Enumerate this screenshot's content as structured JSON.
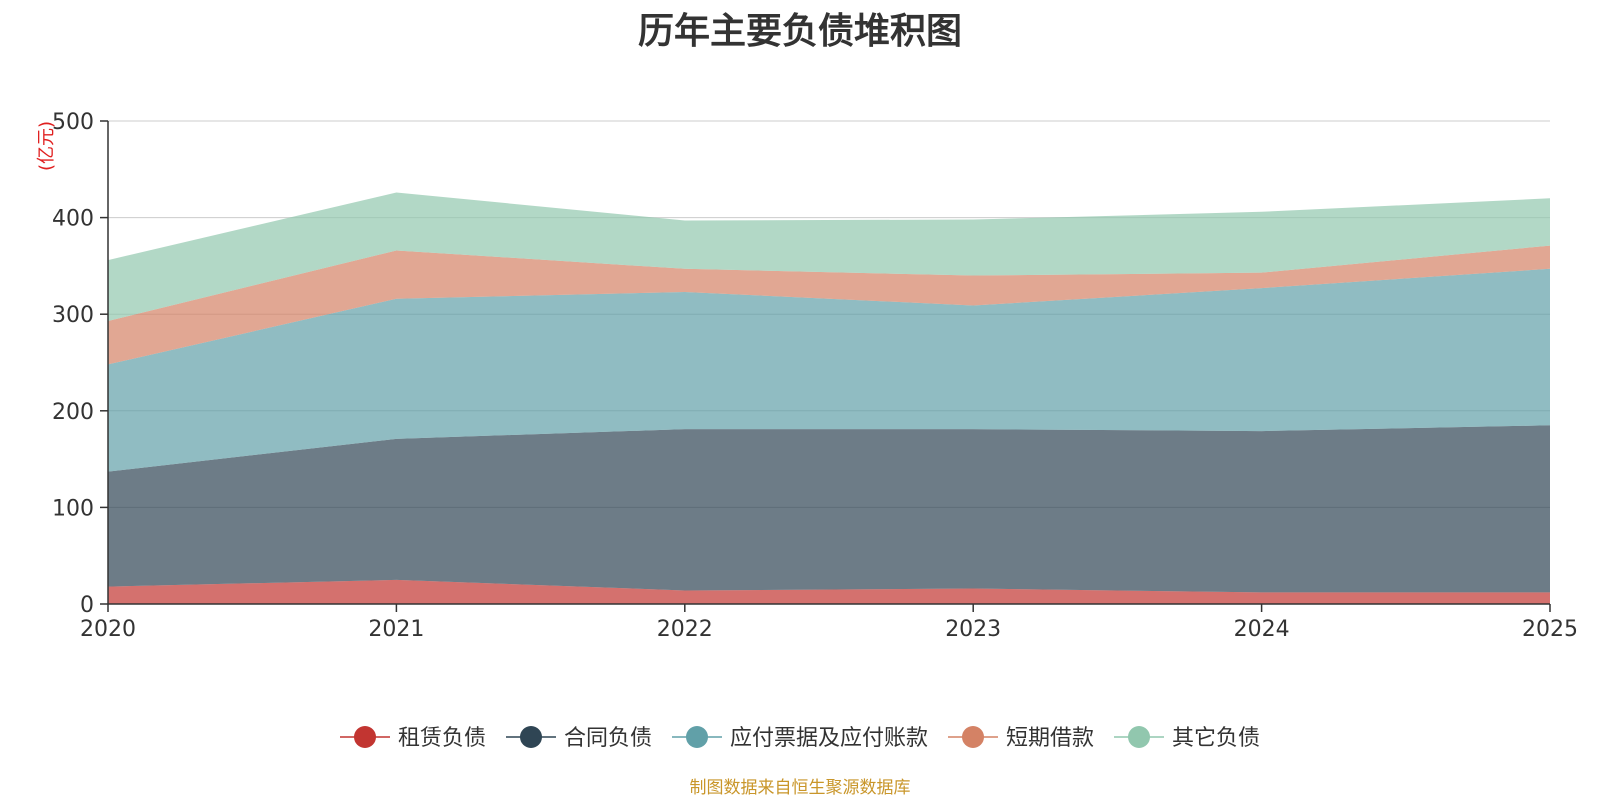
{
  "chart_data": {
    "type": "area",
    "stacked": true,
    "title": "历年主要负债堆积图",
    "ylabel": "(亿元)",
    "xlabel": "",
    "ylim": [
      0,
      500
    ],
    "yticks": [
      0,
      100,
      200,
      300,
      400,
      500
    ],
    "grid": true,
    "legend_position": "bottom",
    "categories": [
      "2020",
      "2021",
      "2022",
      "2023",
      "2024",
      "2025"
    ],
    "series": [
      {
        "name": "租赁负债",
        "color": "#c23531",
        "values": [
          18,
          25,
          14,
          16,
          12,
          12
        ]
      },
      {
        "name": "合同负债",
        "color": "#2f4554",
        "values": [
          119,
          146,
          167,
          165,
          167,
          173
        ]
      },
      {
        "name": "应付票据及应付账款",
        "color": "#61a0a8",
        "values": [
          111,
          145,
          142,
          128,
          148,
          162
        ]
      },
      {
        "name": "短期借款",
        "color": "#d48265",
        "values": [
          45,
          50,
          24,
          31,
          16,
          24
        ]
      },
      {
        "name": "其它负债",
        "color": "#91c7ae",
        "values": [
          63,
          60,
          50,
          58,
          63,
          49
        ]
      }
    ]
  },
  "source_note": "制图数据来自恒生聚源数据库"
}
